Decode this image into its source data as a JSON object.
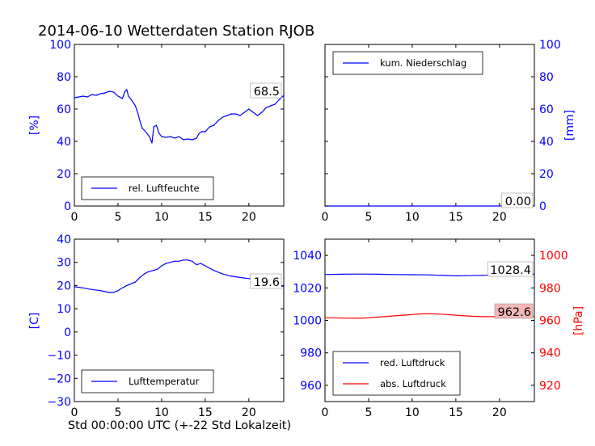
{
  "figure": {
    "title": "2014-06-10 Wetterdaten Station RJOB",
    "xlabel": "Std 00:00:00 UTC (+-22 Std Lokalzeit)"
  },
  "colors": {
    "blue": "#0000ff",
    "red": "#ff0000",
    "black": "#000000",
    "label_box_red": "#f4b6b6"
  },
  "chart_data": [
    {
      "id": "humidity",
      "type": "line",
      "xlim": [
        0,
        24
      ],
      "xticks": [
        "0",
        "5",
        "10",
        "15",
        "20"
      ],
      "ylim": [
        0,
        100
      ],
      "yticks": [
        "0",
        "20",
        "40",
        "60",
        "80",
        "100"
      ],
      "ylabel": "[%]",
      "legend": "rel. Luftfeuchte",
      "legend_loc": "lower-left",
      "last_value_label": "68.5",
      "series": [
        {
          "name": "rel. Luftfeuchte",
          "color": "#0000ff",
          "x": [
            0,
            0.5,
            1,
            1.5,
            2,
            2.5,
            3,
            3.5,
            4,
            4.5,
            5,
            5.5,
            5.8,
            6,
            6.2,
            6.5,
            7,
            7.3,
            7.6,
            7.8,
            8,
            8.3,
            8.6,
            8.9,
            9.1,
            9.4,
            9.7,
            10,
            10.5,
            11,
            11.5,
            12,
            12.5,
            13,
            13.5,
            14,
            14.3,
            14.6,
            15,
            15.5,
            16,
            16.5,
            17,
            17.5,
            18,
            18.5,
            19,
            19.5,
            20,
            20.5,
            21,
            21.5,
            22,
            22.5,
            23,
            23.5,
            24
          ],
          "y": [
            67,
            67.5,
            68,
            67.5,
            69,
            68.5,
            69.5,
            70,
            71,
            70.5,
            68,
            66.5,
            71,
            72,
            68,
            66,
            62,
            57,
            51,
            48,
            47,
            45,
            43,
            39,
            49,
            50,
            45,
            43,
            42.5,
            43,
            42,
            43,
            41,
            41.5,
            41,
            42,
            45,
            46,
            46,
            49,
            50,
            53,
            55,
            56,
            57,
            57,
            56,
            58,
            60,
            58,
            56,
            58,
            61,
            62,
            63,
            66,
            68.5
          ]
        }
      ]
    },
    {
      "id": "precip",
      "type": "line",
      "xlim": [
        0,
        24
      ],
      "xticks": [
        "0",
        "5",
        "10",
        "15",
        "20"
      ],
      "ylim": [
        0,
        100
      ],
      "yticks": [
        "0",
        "20",
        "40",
        "60",
        "80",
        "100"
      ],
      "ylabel": "[mm]",
      "yaxis_side": "right",
      "legend": "kum. Niederschlag",
      "legend_loc": "top-left",
      "last_value_label": "0.00",
      "series": [
        {
          "name": "kum. Niederschlag",
          "color": "#0000ff",
          "x": [
            0,
            24
          ],
          "y": [
            0,
            0
          ]
        }
      ]
    },
    {
      "id": "temperature",
      "type": "line",
      "xlim": [
        0,
        24
      ],
      "xticks": [
        "0",
        "5",
        "10",
        "15",
        "20"
      ],
      "ylim": [
        -30,
        40
      ],
      "yticks": [
        "−30",
        "−20",
        "−10",
        "0",
        "10",
        "20",
        "30",
        "40"
      ],
      "ylabel": "[C]",
      "legend": "Lufttemperatur",
      "legend_loc": "lower-left",
      "last_value_label": "19.6",
      "series": [
        {
          "name": "Lufttemperatur",
          "color": "#0000ff",
          "x": [
            0,
            1,
            2,
            3,
            4,
            4.5,
            5,
            5.5,
            6,
            7,
            7.5,
            8,
            8.5,
            9,
            9.5,
            10,
            10.5,
            11,
            11.5,
            12,
            12.5,
            13,
            13.5,
            14,
            14.5,
            15,
            16,
            17,
            18,
            19,
            20,
            21,
            22,
            23,
            24
          ],
          "y": [
            19.5,
            19,
            18.3,
            17.8,
            17,
            17,
            17.8,
            19,
            20,
            21.5,
            23.5,
            25,
            26,
            26.5,
            27,
            28.5,
            29.5,
            30,
            30.5,
            30.5,
            31,
            31,
            30.5,
            29,
            29.5,
            28.5,
            26.5,
            25,
            24,
            23.5,
            23,
            22.5,
            21.5,
            20.5,
            19.6
          ]
        }
      ]
    },
    {
      "id": "pressure",
      "type": "line",
      "xlim": [
        0,
        24
      ],
      "xticks": [
        "0",
        "5",
        "10",
        "15",
        "20"
      ],
      "ylim": [
        950,
        1050
      ],
      "yticks": [
        "960",
        "980",
        "1000",
        "1020",
        "1040"
      ],
      "ylim_right": [
        910,
        1010
      ],
      "yticks_right": [
        "920",
        "940",
        "960",
        "980",
        "1000"
      ],
      "ylabel_right": "[hPa]",
      "legend_loc": "lower-left",
      "series": [
        {
          "name": "red. Luftdruck",
          "color": "#0000ff",
          "axis": "left",
          "last_value_label": "1028.4",
          "x": [
            0,
            2,
            4,
            6,
            8,
            10,
            12,
            14,
            15,
            16,
            18,
            20,
            22,
            24
          ],
          "y": [
            1028.2,
            1028.4,
            1028.5,
            1028.4,
            1028.2,
            1028.1,
            1028,
            1027.6,
            1027.4,
            1027.5,
            1027.7,
            1028,
            1028.2,
            1028.4
          ]
        },
        {
          "name": "abs. Luftdruck",
          "color": "#ff0000",
          "axis": "right",
          "last_value_label": "962.6",
          "x": [
            0,
            2,
            4,
            5,
            6,
            8,
            10,
            11,
            12,
            13,
            14,
            15,
            16,
            17,
            18,
            20,
            22,
            24
          ],
          "y": [
            961.6,
            961.4,
            961.3,
            961.6,
            962,
            962.8,
            963.6,
            964,
            964.1,
            963.9,
            963.6,
            963.2,
            962.8,
            962.5,
            962.3,
            962.3,
            962.5,
            962.6
          ]
        }
      ]
    }
  ]
}
